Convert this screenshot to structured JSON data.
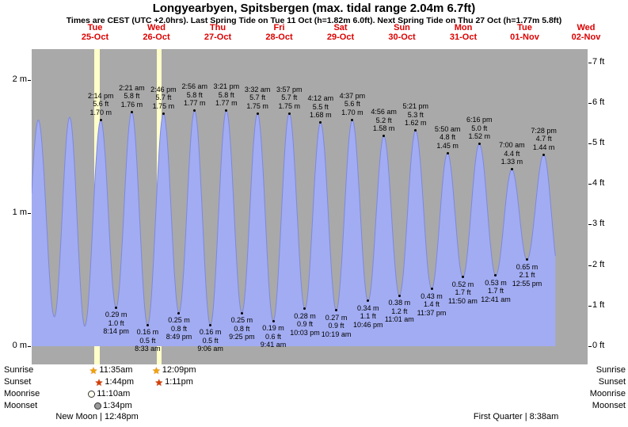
{
  "header": {
    "title": "Longyearbyen, Spitsbergen (max. tidal range 2.04m 6.7ft)",
    "subtitle": "Times are CEST (UTC +2.0hrs). Last Spring Tide on Tue 11 Oct (h=1.82m 6.0ft). Next Spring Tide on Thu 27 Oct (h=1.77m 5.8ft)"
  },
  "chart_data": {
    "type": "area",
    "title": "Longyearbyen, Spitsbergen (max. tidal range 2.04m 6.7ft)",
    "t_reference": "hours from 25-Oct 00:00",
    "curve_start_t": -12.8,
    "curve_end_t": 192,
    "days": [
      {
        "day": "Tue",
        "date": "25-Oct"
      },
      {
        "day": "Wed",
        "date": "26-Oct"
      },
      {
        "day": "Thu",
        "date": "27-Oct"
      },
      {
        "day": "Fri",
        "date": "28-Oct"
      },
      {
        "day": "Sat",
        "date": "29-Oct"
      },
      {
        "day": "Sun",
        "date": "30-Oct"
      },
      {
        "day": "Mon",
        "date": "31-Oct"
      },
      {
        "day": "Tue",
        "date": "01-Nov"
      },
      {
        "day": "Wed",
        "date": "02-Nov"
      }
    ],
    "y_axis_left": {
      "labels": [
        "2 m",
        "1 m",
        "0 m"
      ],
      "values_m": [
        2,
        1,
        0
      ]
    },
    "y_axis_right": {
      "labels": [
        "7 ft",
        "6 ft",
        "5 ft",
        "4 ft",
        "3 ft",
        "2 ft",
        "1 ft",
        "0 ft"
      ],
      "values_ft": [
        7,
        6,
        5,
        4,
        3,
        2,
        1,
        0
      ]
    },
    "daylight_bands": [
      {
        "from_t": 11.583,
        "to_t": 13.733
      },
      {
        "from_t": 36.15,
        "to_t": 37.183
      }
    ],
    "extremes": [
      {
        "t": -16.5,
        "h": 0.2,
        "kind": "L"
      },
      {
        "t": -10.17,
        "h": 1.7,
        "kind": "H"
      },
      {
        "t": -3.9,
        "h": 0.22,
        "kind": "L"
      },
      {
        "t": 2.08,
        "h": 1.72,
        "kind": "H"
      },
      {
        "t": 8.0,
        "h": 0.15,
        "kind": "L"
      },
      {
        "t": 14.233,
        "h": 1.7,
        "kind": "H",
        "lines": [
          "2:14 pm",
          "5.6 ft",
          "1.70 m"
        ]
      },
      {
        "t": 20.233,
        "h": 0.29,
        "kind": "L",
        "lines": [
          "0.29 m",
          "1.0 ft",
          "8:14 pm"
        ]
      },
      {
        "t": 26.35,
        "h": 1.76,
        "kind": "H",
        "lines": [
          "2:21 am",
          "5.8 ft",
          "1.76 m"
        ]
      },
      {
        "t": 32.55,
        "h": 0.16,
        "kind": "L",
        "lines": [
          "0.16 m",
          "0.5 ft",
          "8:33 am"
        ]
      },
      {
        "t": 38.767,
        "h": 1.75,
        "kind": "H",
        "lines": [
          "2:46 pm",
          "5.7 ft",
          "1.75 m"
        ]
      },
      {
        "t": 44.817,
        "h": 0.25,
        "kind": "L",
        "lines": [
          "0.25 m",
          "0.8 ft",
          "8:49 pm"
        ]
      },
      {
        "t": 50.933,
        "h": 1.77,
        "kind": "H",
        "lines": [
          "2:56 am",
          "5.8 ft",
          "1.77 m"
        ]
      },
      {
        "t": 57.1,
        "h": 0.16,
        "kind": "L",
        "lines": [
          "0.16 m",
          "0.5 ft",
          "9:06 am"
        ]
      },
      {
        "t": 63.35,
        "h": 1.77,
        "kind": "H",
        "lines": [
          "3:21 pm",
          "5.8 ft",
          "1.77 m"
        ]
      },
      {
        "t": 69.417,
        "h": 0.25,
        "kind": "L",
        "lines": [
          "0.25 m",
          "0.8 ft",
          "9:25 pm"
        ]
      },
      {
        "t": 75.533,
        "h": 1.75,
        "kind": "H",
        "lines": [
          "3:32 am",
          "5.7 ft",
          "1.75 m"
        ]
      },
      {
        "t": 81.683,
        "h": 0.19,
        "kind": "L",
        "lines": [
          "0.19 m",
          "0.6 ft",
          "9:41 am"
        ]
      },
      {
        "t": 87.95,
        "h": 1.75,
        "kind": "H",
        "lines": [
          "3:57 pm",
          "5.7 ft",
          "1.75 m"
        ]
      },
      {
        "t": 94.05,
        "h": 0.28,
        "kind": "L",
        "lines": [
          "0.28 m",
          "0.9 ft",
          "10:03 pm"
        ]
      },
      {
        "t": 100.2,
        "h": 1.68,
        "kind": "H",
        "lines": [
          "4:12 am",
          "5.5 ft",
          "1.68 m"
        ]
      },
      {
        "t": 106.317,
        "h": 0.27,
        "kind": "L",
        "lines": [
          "0.27 m",
          "0.9 ft",
          "10:19 am"
        ]
      },
      {
        "t": 112.617,
        "h": 1.7,
        "kind": "H",
        "lines": [
          "4:37 pm",
          "5.6 ft",
          "1.70 m"
        ]
      },
      {
        "t": 118.767,
        "h": 0.34,
        "kind": "L",
        "lines": [
          "0.34 m",
          "1.1 ft",
          "10:46 pm"
        ]
      },
      {
        "t": 124.933,
        "h": 1.58,
        "kind": "H",
        "lines": [
          "4:56 am",
          "5.2 ft",
          "1.58 m"
        ]
      },
      {
        "t": 131.017,
        "h": 0.38,
        "kind": "L",
        "lines": [
          "0.38 m",
          "1.2 ft",
          "11:01 am"
        ]
      },
      {
        "t": 137.35,
        "h": 1.62,
        "kind": "H",
        "lines": [
          "5:21 pm",
          "5.3 ft",
          "1.62 m"
        ]
      },
      {
        "t": 143.617,
        "h": 0.43,
        "kind": "L",
        "lines": [
          "0.43 m",
          "1.4 ft",
          "11:37 pm"
        ]
      },
      {
        "t": 149.833,
        "h": 1.45,
        "kind": "H",
        "lines": [
          "5:50 am",
          "4.8 ft",
          "1.45 m"
        ]
      },
      {
        "t": 155.833,
        "h": 0.52,
        "kind": "L",
        "lines": [
          "0.52 m",
          "1.7 ft",
          "11:50 am"
        ]
      },
      {
        "t": 162.267,
        "h": 1.52,
        "kind": "H",
        "lines": [
          "6:16 pm",
          "5.0 ft",
          "1.52 m"
        ]
      },
      {
        "t": 168.683,
        "h": 0.53,
        "kind": "L",
        "lines": [
          "0.53 m",
          "1.7 ft",
          "12:41 am"
        ]
      },
      {
        "t": 175.0,
        "h": 1.33,
        "kind": "H",
        "lines": [
          "7:00 am",
          "4.4 ft",
          "1.33 m"
        ]
      },
      {
        "t": 180.917,
        "h": 0.65,
        "kind": "L",
        "lines": [
          "0.65 m",
          "2.1 ft",
          "12:55 pm"
        ]
      },
      {
        "t": 187.467,
        "h": 1.44,
        "kind": "H",
        "lines": [
          "7:28 pm",
          "4.7 ft",
          "1.44 m"
        ]
      },
      {
        "t": 193.5,
        "h": 0.55,
        "kind": "L"
      }
    ],
    "colors": {
      "plot_bg": "#a9a9a9",
      "tide_fill": "#a2acf2",
      "tide_edge": "#7d88dd",
      "daylight_band": "#ffffc9",
      "day_label": "#dd0000"
    }
  },
  "footer": {
    "row_labels": [
      "Sunrise",
      "Sunset",
      "Moonrise",
      "Moonset"
    ],
    "sunrise": [
      {
        "t": 11.583,
        "time": "11:35am"
      },
      {
        "t": 36.15,
        "time": "12:09pm"
      }
    ],
    "sunset": [
      {
        "t": 13.733,
        "time": "1:44pm"
      },
      {
        "t": 37.183,
        "time": "1:11pm"
      }
    ],
    "moonrise": [
      {
        "t": 11.167,
        "time": "11:10am"
      }
    ],
    "moonset": [
      {
        "t": 13.567,
        "time": "1:34pm"
      }
    ],
    "moon_phases": [
      {
        "t": 12.8,
        "label": "New Moon | 12:48pm"
      },
      {
        "t": 176.633,
        "label": "First Quarter | 8:38am"
      }
    ]
  }
}
